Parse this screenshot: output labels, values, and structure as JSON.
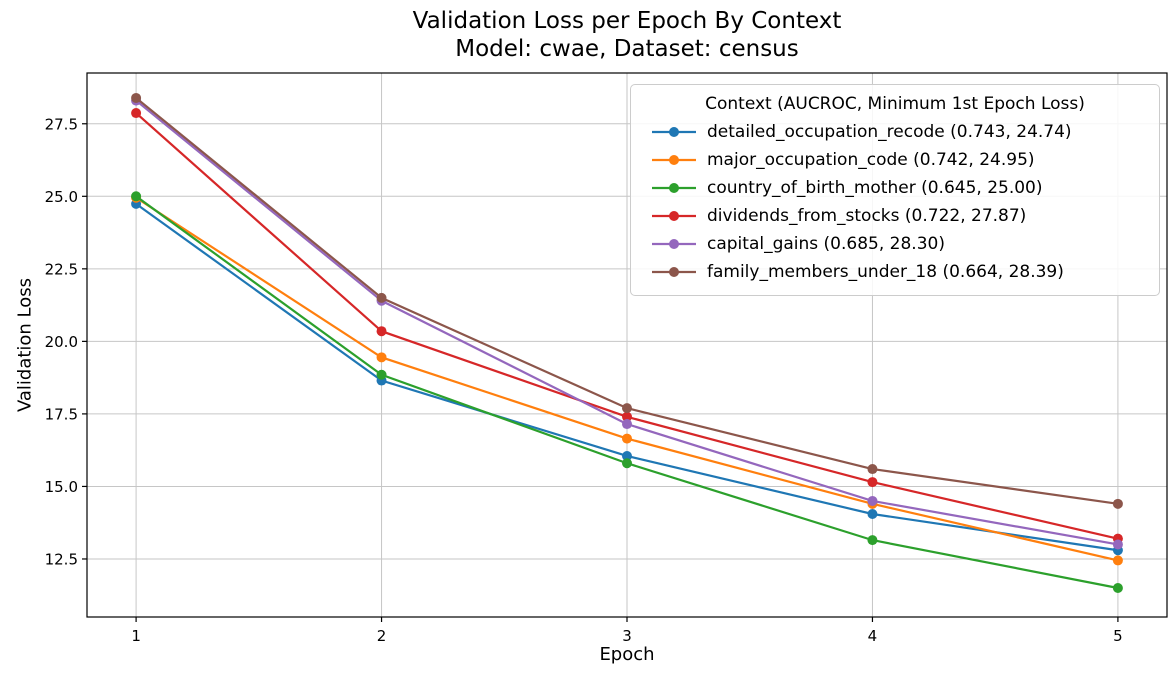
{
  "colors": {
    "background": "#ffffff",
    "grid": "#c6c6c6",
    "axis": "#000000",
    "tick_label": "#000000",
    "legend_border": "#cccccc"
  },
  "chart_data": {
    "type": "line",
    "title": "Validation Loss per Epoch By Context",
    "subtitle": "Model: cwae, Dataset: census",
    "xlabel": "Epoch",
    "ylabel": "Validation Loss",
    "x": [
      1,
      2,
      3,
      4,
      5
    ],
    "xticks": [
      "1",
      "2",
      "3",
      "4",
      "5"
    ],
    "yticks": [
      "12.5",
      "15.0",
      "17.5",
      "20.0",
      "22.5",
      "25.0",
      "27.5"
    ],
    "xlim": [
      0.8,
      5.2
    ],
    "ylim": [
      10.5,
      29.25
    ],
    "grid": true,
    "marker": "circle",
    "legend": {
      "title": "Context (AUCROC, Minimum 1st Epoch Loss)",
      "position": "upper right"
    },
    "series": [
      {
        "name": "detailed_occupation_recode",
        "aucroc": 0.743,
        "min_first_epoch_loss": 24.74,
        "legend_label": "detailed_occupation_recode (0.743, 24.74)",
        "color": "#1f77b4",
        "values": [
          24.74,
          18.65,
          16.05,
          14.05,
          12.8
        ]
      },
      {
        "name": "major_occupation_code",
        "aucroc": 0.742,
        "min_first_epoch_loss": 24.95,
        "legend_label": "major_occupation_code (0.742, 24.95)",
        "color": "#ff7f0e",
        "values": [
          24.95,
          19.45,
          16.65,
          14.4,
          12.45
        ]
      },
      {
        "name": "country_of_birth_mother",
        "aucroc": 0.645,
        "min_first_epoch_loss": 25.0,
        "legend_label": "country_of_birth_mother (0.645, 25.00)",
        "color": "#2ca02c",
        "values": [
          25.0,
          18.85,
          15.8,
          13.15,
          11.5
        ]
      },
      {
        "name": "dividends_from_stocks",
        "aucroc": 0.722,
        "min_first_epoch_loss": 27.87,
        "legend_label": "dividends_from_stocks (0.722, 27.87)",
        "color": "#d62728",
        "values": [
          27.87,
          20.35,
          17.4,
          15.15,
          13.2
        ]
      },
      {
        "name": "capital_gains",
        "aucroc": 0.685,
        "min_first_epoch_loss": 28.3,
        "legend_label": "capital_gains (0.685, 28.30)",
        "color": "#9467bd",
        "values": [
          28.3,
          21.4,
          17.15,
          14.5,
          13.0
        ]
      },
      {
        "name": "family_members_under_18",
        "aucroc": 0.664,
        "min_first_epoch_loss": 28.39,
        "legend_label": "family_members_under_18 (0.664, 28.39)",
        "color": "#8c564b",
        "values": [
          28.39,
          21.5,
          17.7,
          15.6,
          14.4
        ]
      }
    ]
  }
}
